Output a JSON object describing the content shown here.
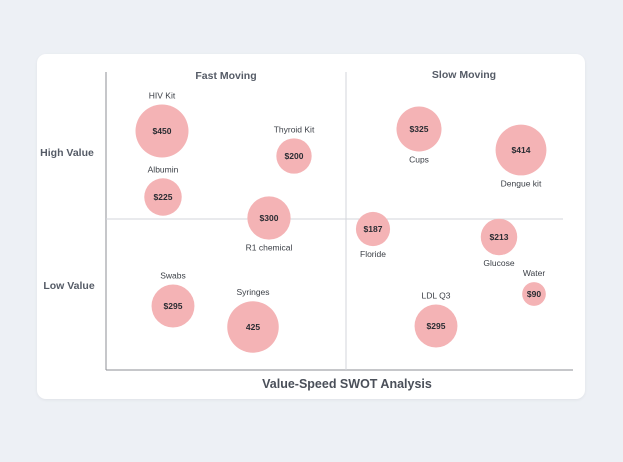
{
  "chart_data": {
    "type": "scatter",
    "title": "",
    "xlabel": "Value-Speed SWOT Analysis",
    "ylabel": "",
    "column_titles": [
      "Fast Moving",
      "Slow Moving"
    ],
    "row_titles": [
      "High Value",
      "Low Value"
    ],
    "bubble_color": "#f4b3b5",
    "points": [
      {
        "label": "HIV Kit",
        "value_label": "$450",
        "size": 450,
        "quadrant": "fast-high",
        "label_pos": "above"
      },
      {
        "label": "Thyroid Kit",
        "value_label": "$200",
        "size": 200,
        "quadrant": "fast-high",
        "label_pos": "above"
      },
      {
        "label": "Albumin",
        "value_label": "$225",
        "size": 225,
        "quadrant": "fast-high",
        "label_pos": "above"
      },
      {
        "label": "R1 chemical",
        "value_label": "$300",
        "size": 300,
        "quadrant": "fast-high",
        "label_pos": "below"
      },
      {
        "label": "Cups",
        "value_label": "$325",
        "size": 325,
        "quadrant": "slow-high",
        "label_pos": "below"
      },
      {
        "label": "Dengue kit",
        "value_label": "$414",
        "size": 414,
        "quadrant": "slow-high",
        "label_pos": "below"
      },
      {
        "label": "Floride",
        "value_label": "$187",
        "size": 187,
        "quadrant": "slow-low",
        "label_pos": "below"
      },
      {
        "label": "Glucose",
        "value_label": "$213",
        "size": 213,
        "quadrant": "slow-low",
        "label_pos": "below"
      },
      {
        "label": "Water",
        "value_label": "$90",
        "size": 90,
        "quadrant": "slow-low",
        "label_pos": "above"
      },
      {
        "label": "LDL Q3",
        "value_label": "$295",
        "size": 295,
        "quadrant": "slow-low",
        "label_pos": "above"
      },
      {
        "label": "Swabs",
        "value_label": "$295",
        "size": 295,
        "quadrant": "fast-low",
        "label_pos": "above"
      },
      {
        "label": "Syringes",
        "value_label": "425",
        "size": 425,
        "quadrant": "fast-low",
        "label_pos": "above"
      }
    ]
  }
}
